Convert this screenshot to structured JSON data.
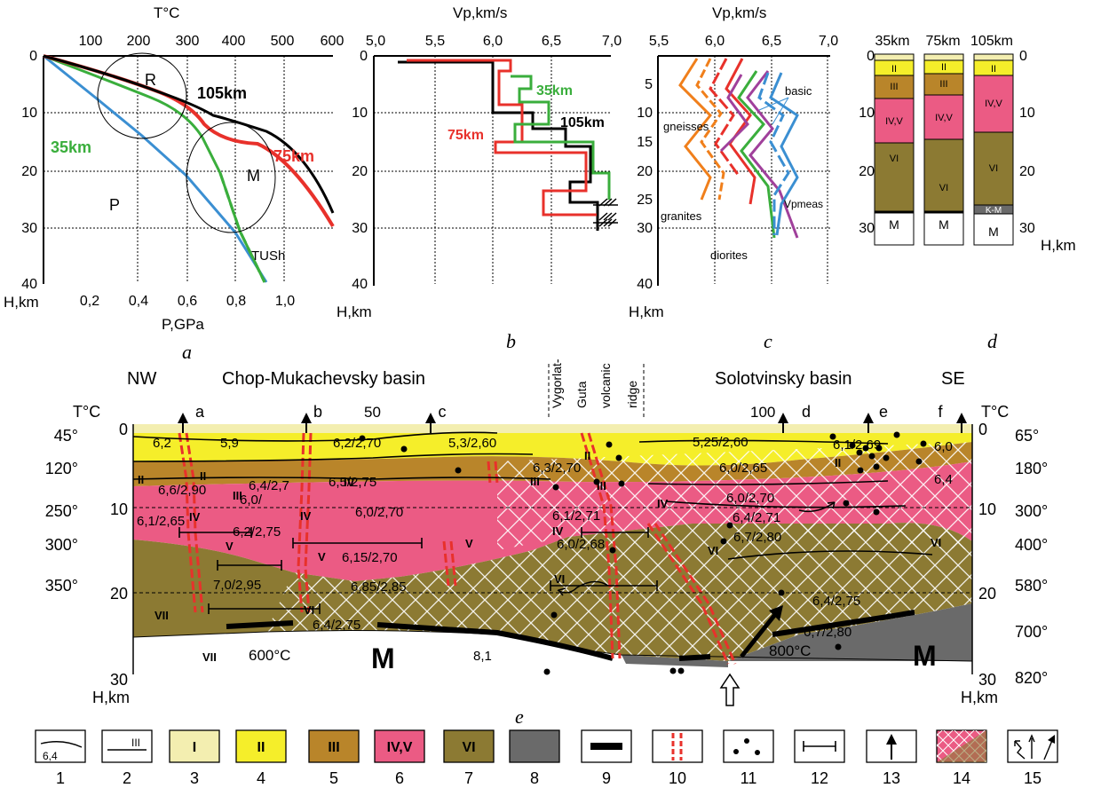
{
  "panels": {
    "a": {
      "letter": "a",
      "top_axis_title": "T°C",
      "top_ticks": [
        "100",
        "200",
        "300",
        "400",
        "500",
        "600"
      ],
      "bottom_ticks": [
        "0,2",
        "0,4",
        "0,6",
        "0,8",
        "1,0"
      ],
      "bottom_axis_title": "P,GPa",
      "depth_title": "H,km",
      "depth_ticks": [
        "0",
        "10",
        "20",
        "30",
        "40"
      ],
      "labels": {
        "R": "R",
        "M": "M",
        "P": "P",
        "tush": "TUSh",
        "km105": "105km",
        "km35": "35km",
        "km75": "75km"
      }
    },
    "b": {
      "letter": "b",
      "top_axis_title": "Vp,km/s",
      "top_ticks": [
        "5,0",
        "5,5",
        "6,0",
        "6,5",
        "7,0"
      ],
      "depth_title": "H,km",
      "depth_ticks": [
        "0",
        "10",
        "20",
        "30",
        "40"
      ],
      "labels": {
        "km35": "35km",
        "km105": "105km",
        "km75": "75km"
      }
    },
    "c": {
      "letter": "c",
      "top_axis_title": "Vp,km/s",
      "top_ticks": [
        "5,5",
        "6,0",
        "6,5",
        "7,0"
      ],
      "depth_title": "H,km",
      "depth_ticks": [
        "5",
        "10",
        "15",
        "20",
        "25",
        "30",
        "40"
      ],
      "labels": {
        "basic": "basic",
        "gneisses": "gneisses",
        "granites": "granites",
        "diorites": "diorites",
        "vp": "Vpmeas"
      }
    },
    "d": {
      "letter": "d",
      "columns": [
        "35km",
        "75km",
        "105km"
      ],
      "depth_ticks": [
        "0",
        "10",
        "20",
        "30"
      ],
      "depth_title": "H,km",
      "col1": [
        "II",
        "III",
        "IV,V",
        "VI",
        "VI",
        "M"
      ],
      "col2": [
        "II",
        "III",
        "IV,V",
        "VI",
        "M"
      ],
      "col3": [
        "II",
        "IV,V",
        "VI",
        "K-M",
        "M"
      ]
    },
    "e": {
      "letter": "e",
      "nw": "NW",
      "se": "SE",
      "basin1": "Chop-Mukachevsky basin",
      "ridge": [
        "Vygorlat-",
        "Guta",
        "volcanic",
        "ridge"
      ],
      "basin2": "Solotvinsky basin",
      "t_title_left": "T°C",
      "t_title_right": "T°C",
      "t_left": [
        "45°",
        "120°",
        "250°",
        "300°",
        "350°"
      ],
      "t_right": [
        "65°",
        "180°",
        "300°",
        "400°",
        "580°",
        "700°",
        "820°"
      ],
      "depth_left": [
        "0",
        "10",
        "20",
        "30"
      ],
      "depth_right": [
        "0",
        "10",
        "20",
        "30"
      ],
      "h_left": "H,km",
      "h_right": "H,km",
      "km_marks": [
        "50",
        "100"
      ],
      "wells": [
        "a",
        "b",
        "c",
        "d",
        "e",
        "f"
      ],
      "values": [
        "6,2",
        "5,9",
        "6,2/2,70",
        "5,3/2,60",
        "5,25/2,60",
        "6,1/2,69",
        "6,0",
        "6,6/2,90",
        "6,4/2,7",
        "6,0/",
        "6,5/2,75",
        "6,3/2,70",
        "6,0/2,65",
        "6,4",
        "6,1/2,65",
        "6,2/2,75",
        "6,0/2,70",
        "6,1/2,71",
        "6,0/2,70",
        "6,4/2,71",
        "6,15/2,70",
        "6,0/2,68",
        "6,7/2,80",
        "7,0/2,95",
        "6,85/2,85",
        "6,4/2,75",
        "6,7/2,80",
        "6,4/2,75",
        "8,1"
      ],
      "temps": [
        "600°C",
        "800°C"
      ],
      "m1": "M",
      "m2": "M",
      "roman": [
        "II",
        "II",
        "III",
        "IV",
        "V",
        "V",
        "VI",
        "VII",
        "VII",
        "IV",
        "V",
        "IV",
        "III",
        "II",
        "III",
        "IV",
        "VI",
        "VI",
        "II",
        "IV",
        "VI"
      ]
    }
  },
  "legend": {
    "numbers": [
      "1",
      "2",
      "3",
      "4",
      "5",
      "6",
      "7",
      "8",
      "9",
      "10",
      "11",
      "12",
      "13",
      "14",
      "15"
    ],
    "box1_text": "6,4",
    "box2_text": "III",
    "box3_text": "I",
    "box4_text": "II",
    "box5_text": "III",
    "box6_text": "IV,V",
    "box7_text": "VI"
  },
  "colors": {
    "I": "#f3eeb0",
    "II": "#f5ee2a",
    "III": "#b9852a",
    "IVV": "#eb5b84",
    "VI": "#8c7a33",
    "VIII": "#6a6a6a",
    "red": "#e8312b",
    "green": "#3aae3c",
    "blue": "#3b8fd2",
    "black": "#000000"
  }
}
